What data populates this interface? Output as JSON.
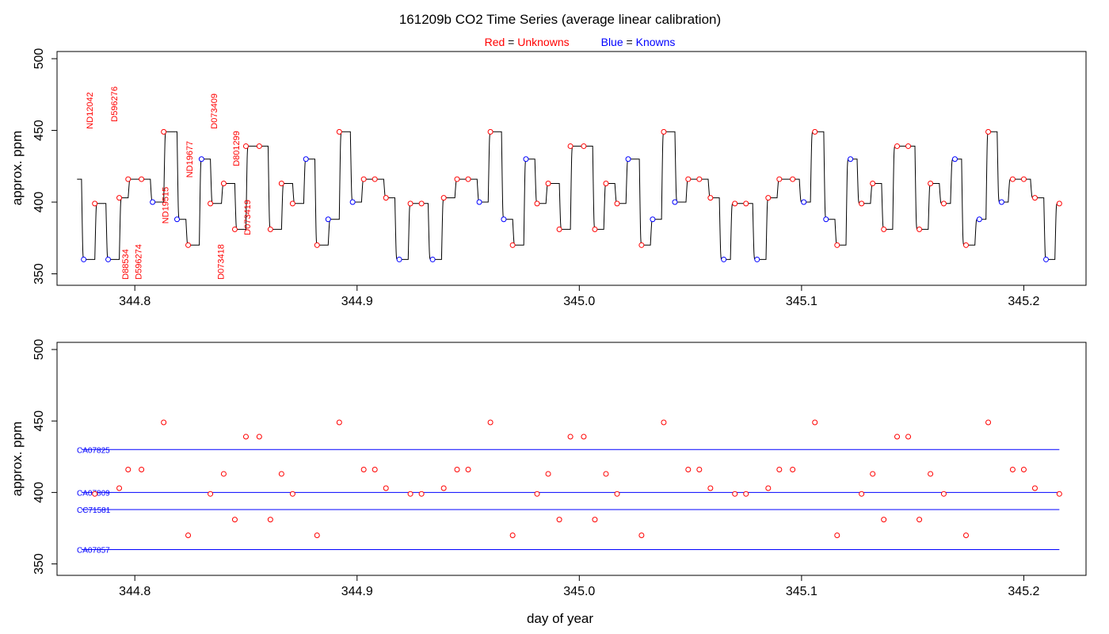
{
  "figure": {
    "title": "161209b   CO2 Time Series (average linear calibration)",
    "legend": {
      "unknown": {
        "word": "Red",
        "eq": " = ",
        "label": "Unknowns",
        "color": "#ff0000"
      },
      "known": {
        "word": "Blue",
        "eq": " = ",
        "label": "Knowns",
        "color": "#0000ff"
      }
    },
    "xlabel": "day of year"
  },
  "chart_data": [
    {
      "type": "line",
      "panel": "top",
      "ylabel": "approx. ppm",
      "xlim": [
        344.765,
        345.228
      ],
      "ylim": [
        342,
        505
      ],
      "xticks": [
        344.8,
        344.9,
        345.0,
        345.1,
        345.2
      ],
      "yticks": [
        350,
        400,
        450,
        500
      ],
      "grid": false,
      "colors": {
        "trace": "#000000",
        "unknown": "#ff0000",
        "known": "#0000ff"
      },
      "trace_series": {
        "name": "",
        "start": [
          344.774,
          416
        ],
        "segments": [
          [
            344.776,
            360
          ],
          [
            344.782,
            399
          ],
          [
            344.787,
            360
          ],
          [
            344.793,
            403
          ],
          [
            344.797,
            416
          ],
          [
            344.807,
            400
          ],
          [
            344.813,
            449
          ],
          [
            344.819,
            388
          ],
          [
            344.823,
            370
          ],
          [
            344.829,
            430
          ],
          [
            344.834,
            399
          ],
          [
            344.839,
            413
          ],
          [
            344.845,
            381
          ],
          [
            344.85,
            439
          ],
          [
            344.86,
            381
          ],
          [
            344.866,
            413
          ],
          [
            344.871,
            399
          ],
          [
            344.876,
            430
          ],
          [
            344.881,
            370
          ],
          [
            344.887,
            388
          ],
          [
            344.892,
            449
          ],
          [
            344.897,
            400
          ],
          [
            344.902,
            416
          ],
          [
            344.912,
            403
          ],
          [
            344.917,
            360
          ],
          [
            344.923,
            399
          ],
          [
            344.932,
            360
          ],
          [
            344.938,
            403
          ],
          [
            344.944,
            416
          ],
          [
            344.954,
            400
          ],
          [
            344.959,
            449
          ],
          [
            344.965,
            388
          ],
          [
            344.97,
            370
          ],
          [
            344.975,
            430
          ],
          [
            344.98,
            399
          ],
          [
            344.985,
            413
          ],
          [
            344.991,
            381
          ],
          [
            344.996,
            439
          ],
          [
            345.006,
            381
          ],
          [
            345.011,
            413
          ],
          [
            345.016,
            399
          ],
          [
            345.021,
            430
          ],
          [
            345.027,
            370
          ],
          [
            345.032,
            388
          ],
          [
            345.037,
            449
          ],
          [
            345.043,
            400
          ],
          [
            345.048,
            416
          ],
          [
            345.058,
            403
          ],
          [
            345.063,
            360
          ],
          [
            345.068,
            399
          ],
          [
            345.078,
            360
          ],
          [
            345.084,
            403
          ],
          [
            345.089,
            416
          ],
          [
            345.099,
            400
          ],
          [
            345.104,
            449
          ],
          [
            345.11,
            388
          ],
          [
            345.115,
            370
          ],
          [
            345.12,
            430
          ],
          [
            345.125,
            399
          ],
          [
            345.131,
            413
          ],
          [
            345.136,
            381
          ],
          [
            345.141,
            439
          ],
          [
            345.151,
            381
          ],
          [
            345.157,
            413
          ],
          [
            345.162,
            399
          ],
          [
            345.167,
            430
          ],
          [
            345.172,
            370
          ],
          [
            345.178,
            388
          ],
          [
            345.183,
            449
          ],
          [
            345.188,
            400
          ],
          [
            345.193,
            416
          ],
          [
            345.203,
            403
          ],
          [
            345.209,
            360
          ],
          [
            345.214,
            399
          ]
        ],
        "end_x": 345.216
      },
      "unknown_points": [
        [
          344.782,
          399
        ],
        [
          344.793,
          403
        ],
        [
          344.797,
          416
        ],
        [
          344.803,
          416
        ],
        [
          344.813,
          449
        ],
        [
          344.824,
          370
        ],
        [
          344.834,
          399
        ],
        [
          344.84,
          413
        ],
        [
          344.845,
          381
        ],
        [
          344.85,
          439
        ],
        [
          344.856,
          439
        ],
        [
          344.861,
          381
        ],
        [
          344.866,
          413
        ],
        [
          344.871,
          399
        ],
        [
          344.882,
          370
        ],
        [
          344.892,
          449
        ],
        [
          344.903,
          416
        ],
        [
          344.908,
          416
        ],
        [
          344.913,
          403
        ],
        [
          344.924,
          399
        ],
        [
          344.929,
          399
        ],
        [
          344.939,
          403
        ],
        [
          344.945,
          416
        ],
        [
          344.95,
          416
        ],
        [
          344.96,
          449
        ],
        [
          344.97,
          370
        ],
        [
          344.981,
          399
        ],
        [
          344.986,
          413
        ],
        [
          344.991,
          381
        ],
        [
          344.996,
          439
        ],
        [
          345.002,
          439
        ],
        [
          345.007,
          381
        ],
        [
          345.012,
          413
        ],
        [
          345.017,
          399
        ],
        [
          345.028,
          370
        ],
        [
          345.038,
          449
        ],
        [
          345.049,
          416
        ],
        [
          345.054,
          416
        ],
        [
          345.059,
          403
        ],
        [
          345.07,
          399
        ],
        [
          345.075,
          399
        ],
        [
          345.085,
          403
        ],
        [
          345.09,
          416
        ],
        [
          345.096,
          416
        ],
        [
          345.106,
          449
        ],
        [
          345.116,
          370
        ],
        [
          345.127,
          399
        ],
        [
          345.132,
          413
        ],
        [
          345.137,
          381
        ],
        [
          345.143,
          439
        ],
        [
          345.148,
          439
        ],
        [
          345.153,
          381
        ],
        [
          345.158,
          413
        ],
        [
          345.164,
          399
        ],
        [
          345.174,
          370
        ],
        [
          345.184,
          449
        ],
        [
          345.195,
          416
        ],
        [
          345.2,
          416
        ],
        [
          345.205,
          403
        ],
        [
          345.216,
          399
        ]
      ],
      "known_points": [
        [
          344.777,
          360
        ],
        [
          344.788,
          360
        ],
        [
          344.808,
          400
        ],
        [
          344.819,
          388
        ],
        [
          344.83,
          430
        ],
        [
          344.877,
          430
        ],
        [
          344.887,
          388
        ],
        [
          344.898,
          400
        ],
        [
          344.919,
          360
        ],
        [
          344.934,
          360
        ],
        [
          344.955,
          400
        ],
        [
          344.966,
          388
        ],
        [
          344.976,
          430
        ],
        [
          345.022,
          430
        ],
        [
          345.033,
          388
        ],
        [
          345.043,
          400
        ],
        [
          345.065,
          360
        ],
        [
          345.08,
          360
        ],
        [
          345.101,
          400
        ],
        [
          345.111,
          388
        ],
        [
          345.122,
          430
        ],
        [
          345.169,
          430
        ],
        [
          345.18,
          388
        ],
        [
          345.19,
          400
        ],
        [
          345.21,
          360
        ]
      ],
      "annotations": [
        {
          "text": "ND12042",
          "x": 344.781,
          "y": 451
        },
        {
          "text": "D596276",
          "x": 344.792,
          "y": 456
        },
        {
          "text": "D88534",
          "x": 344.797,
          "y": 346
        },
        {
          "text": "D596274",
          "x": 344.803,
          "y": 346
        },
        {
          "text": "ND19515",
          "x": 344.815,
          "y": 385
        },
        {
          "text": "ND19677",
          "x": 344.826,
          "y": 417
        },
        {
          "text": "D073409",
          "x": 344.837,
          "y": 451
        },
        {
          "text": "D073418",
          "x": 344.84,
          "y": 346
        },
        {
          "text": "D801299",
          "x": 344.847,
          "y": 425
        },
        {
          "text": "D073419",
          "x": 344.852,
          "y": 377
        }
      ]
    },
    {
      "type": "scatter",
      "panel": "bottom",
      "ylabel": "approx. ppm",
      "xlim": [
        344.765,
        345.228
      ],
      "ylim": [
        342,
        505
      ],
      "xticks": [
        344.8,
        344.9,
        345.0,
        345.1,
        345.2
      ],
      "yticks": [
        350,
        400,
        450,
        500
      ],
      "grid": false,
      "colors": {
        "unknown": "#ff0000",
        "known": "#0000ff"
      },
      "unknown_points": [
        [
          344.782,
          399
        ],
        [
          344.793,
          403
        ],
        [
          344.797,
          416
        ],
        [
          344.803,
          416
        ],
        [
          344.813,
          449
        ],
        [
          344.824,
          370
        ],
        [
          344.834,
          399
        ],
        [
          344.84,
          413
        ],
        [
          344.845,
          381
        ],
        [
          344.85,
          439
        ],
        [
          344.856,
          439
        ],
        [
          344.861,
          381
        ],
        [
          344.866,
          413
        ],
        [
          344.871,
          399
        ],
        [
          344.882,
          370
        ],
        [
          344.892,
          449
        ],
        [
          344.903,
          416
        ],
        [
          344.908,
          416
        ],
        [
          344.913,
          403
        ],
        [
          344.924,
          399
        ],
        [
          344.929,
          399
        ],
        [
          344.939,
          403
        ],
        [
          344.945,
          416
        ],
        [
          344.95,
          416
        ],
        [
          344.96,
          449
        ],
        [
          344.97,
          370
        ],
        [
          344.981,
          399
        ],
        [
          344.986,
          413
        ],
        [
          344.991,
          381
        ],
        [
          344.996,
          439
        ],
        [
          345.002,
          439
        ],
        [
          345.007,
          381
        ],
        [
          345.012,
          413
        ],
        [
          345.017,
          399
        ],
        [
          345.028,
          370
        ],
        [
          345.038,
          449
        ],
        [
          345.049,
          416
        ],
        [
          345.054,
          416
        ],
        [
          345.059,
          403
        ],
        [
          345.07,
          399
        ],
        [
          345.075,
          399
        ],
        [
          345.085,
          403
        ],
        [
          345.09,
          416
        ],
        [
          345.096,
          416
        ],
        [
          345.106,
          449
        ],
        [
          345.116,
          370
        ],
        [
          345.127,
          399
        ],
        [
          345.132,
          413
        ],
        [
          345.137,
          381
        ],
        [
          345.143,
          439
        ],
        [
          345.148,
          439
        ],
        [
          345.153,
          381
        ],
        [
          345.158,
          413
        ],
        [
          345.164,
          399
        ],
        [
          345.174,
          370
        ],
        [
          345.184,
          449
        ],
        [
          345.195,
          416
        ],
        [
          345.2,
          416
        ],
        [
          345.205,
          403
        ],
        [
          345.216,
          399
        ]
      ],
      "reference_lines": [
        {
          "label": "CA07825",
          "value": 430,
          "x": [
            344.776,
            345.216
          ]
        },
        {
          "label": "CA07809",
          "value": 400,
          "x": [
            344.776,
            345.216
          ]
        },
        {
          "label": "CC71581",
          "value": 388,
          "x": [
            344.776,
            345.216
          ]
        },
        {
          "label": "CA07857",
          "value": 360,
          "x": [
            344.776,
            345.216
          ]
        }
      ]
    }
  ]
}
